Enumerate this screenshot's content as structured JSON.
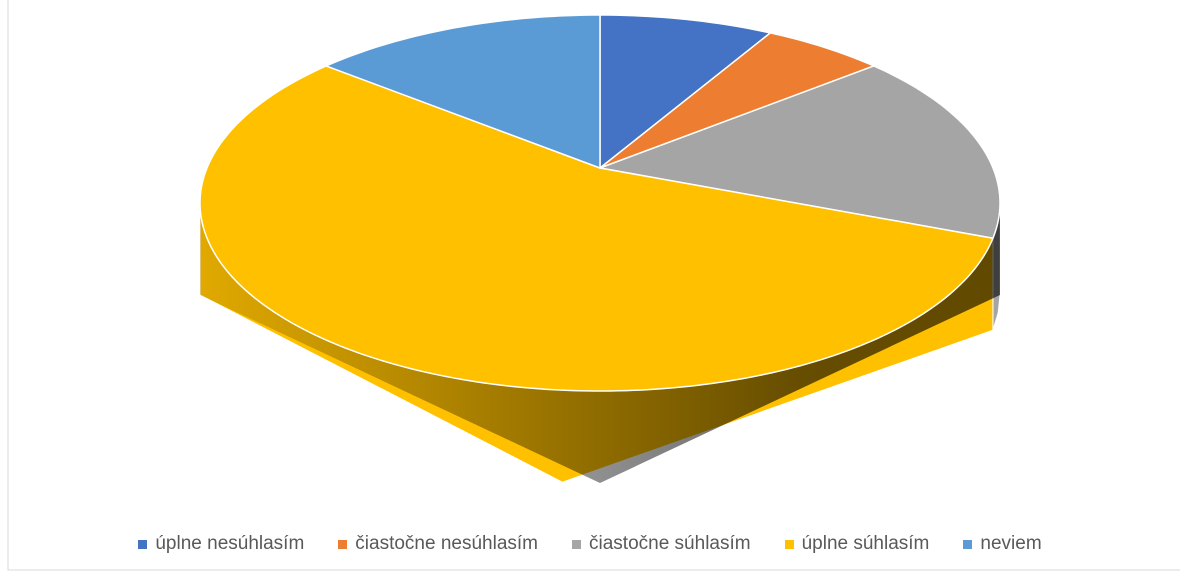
{
  "chart_data": {
    "type": "pie3d",
    "categories": [
      "úplne nesúhlasím",
      "čiastočne nesúhlasím",
      "čiastočne súhlasím",
      "úplne súhlasím",
      "neviem"
    ],
    "values": [
      7,
      5,
      16,
      60,
      12
    ],
    "colors": [
      "#4472c4",
      "#ed7d31",
      "#a5a5a5",
      "#ffc000",
      "#5b9bd5"
    ],
    "legend": "bottom"
  }
}
